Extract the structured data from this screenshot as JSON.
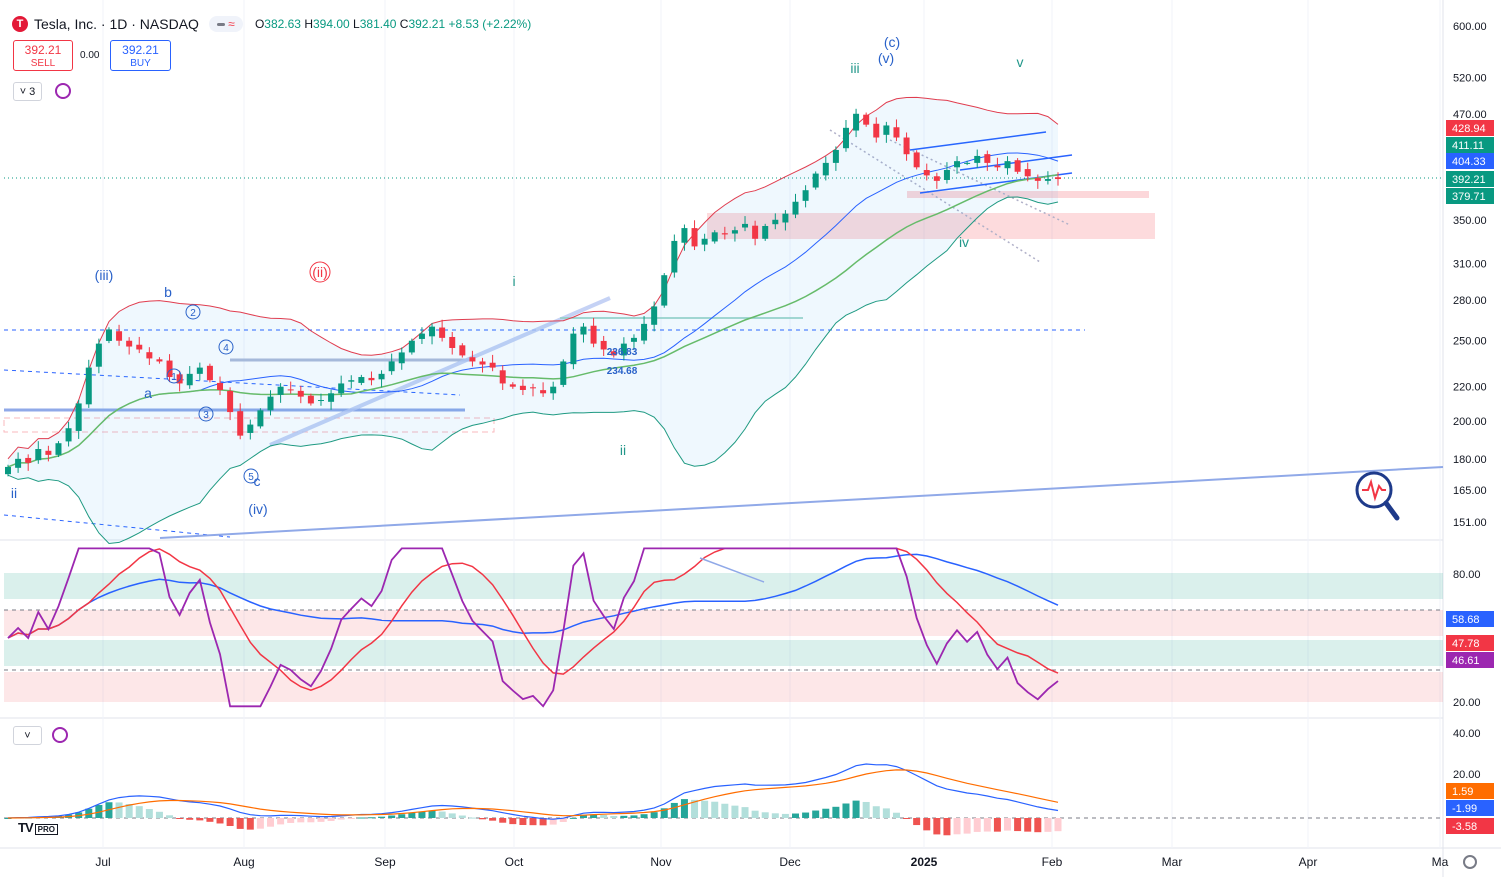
{
  "header": {
    "symbol_title": "Tesla, Inc. · 1D · NASDAQ",
    "logo_letter": "T",
    "ohlc": {
      "o_label": "O",
      "o": "382.63",
      "h_label": "H",
      "h": "394.00",
      "l_label": "L",
      "l": "381.40",
      "c_label": "C",
      "c": "392.21",
      "change": "+8.53 (+2.22%)"
    },
    "sell": {
      "price": "392.21",
      "label": "SELL"
    },
    "buy": {
      "price": "392.21",
      "label": "BUY"
    },
    "spread": "0.00",
    "indicator_count": "3"
  },
  "colors": {
    "up": "#089981",
    "down": "#f23645",
    "blue": "#2962ff",
    "purple": "#9c27b0",
    "orange": "#ff6d00",
    "wave": "#2a62c9",
    "wave_green": "#22978a"
  },
  "chart_data": [
    {
      "type": "candlestick",
      "x_ticks": [
        "Jul",
        "Aug",
        "Sep",
        "Oct",
        "Nov",
        "Dec",
        "2025",
        "Feb",
        "Mar",
        "Apr",
        "Ma"
      ],
      "y_ticks": [
        "600.00",
        "520.00",
        "470.00",
        "350.00",
        "310.00",
        "280.00",
        "250.00",
        "220.00",
        "200.00",
        "180.00",
        "165.00",
        "151.00"
      ],
      "scale": "log",
      "price_tags": [
        {
          "value": "428.94",
          "color": "#f23645"
        },
        {
          "value": "411.11",
          "color": "#089981"
        },
        {
          "value": "404.33",
          "color": "#2962ff"
        },
        {
          "value": "392.21",
          "color": "#089981"
        },
        {
          "value": "379.71",
          "color": "#089981"
        }
      ],
      "close_path": [
        176,
        180,
        178,
        185,
        182,
        188,
        196,
        210,
        232,
        248,
        258,
        250,
        246,
        244,
        238,
        236,
        226,
        222,
        228,
        232,
        224,
        218,
        205,
        192,
        198,
        206,
        214,
        220,
        218,
        214,
        210,
        212,
        216,
        222,
        224,
        226,
        224,
        228,
        236,
        242,
        250,
        255,
        260,
        252,
        245,
        240,
        236,
        234,
        232,
        222,
        220,
        218,
        219,
        216,
        220,
        236,
        255,
        260,
        248,
        244,
        240,
        248,
        252,
        262,
        275,
        300,
        330,
        342,
        325,
        332,
        338,
        336,
        340,
        346,
        332,
        344,
        350,
        356,
        368,
        380,
        398,
        410,
        425,
        452,
        470,
        456,
        440,
        455,
        440,
        420,
        405,
        396,
        390,
        402,
        412,
        410,
        418,
        410,
        405,
        412,
        400,
        395,
        390,
        392,
        392
      ],
      "wave_labels": [
        "(iii)",
        "(ii)",
        "(iv)",
        "(c)",
        "(v)",
        "ii",
        "i",
        "ii",
        "iii",
        "iv",
        "v",
        "a",
        "b",
        "c"
      ],
      "fib_labels": [
        "236.83",
        "234.68"
      ]
    },
    {
      "type": "line",
      "name": "RSI",
      "y_ticks": [
        "80.00",
        "20.00"
      ],
      "value_tags": [
        {
          "value": "58.68",
          "color": "#2962ff"
        },
        {
          "value": "47.78",
          "color": "#f23645"
        },
        {
          "value": "46.61",
          "color": "#9c27b0"
        }
      ]
    },
    {
      "type": "bar",
      "name": "MACD",
      "y_ticks": [
        "40.00",
        "20.00"
      ],
      "value_tags": [
        {
          "value": "1.59",
          "color": "#ff6d00"
        },
        {
          "value": "-1.99",
          "color": "#2962ff"
        },
        {
          "value": "-3.58",
          "color": "#f23645"
        }
      ]
    }
  ],
  "footer": {
    "logo_text": "TV",
    "pro_label": "PRO"
  }
}
